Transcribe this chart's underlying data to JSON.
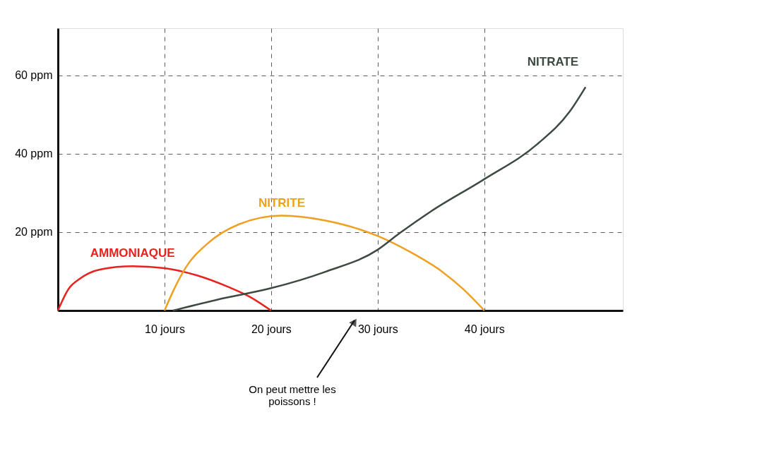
{
  "chart_data": {
    "type": "line",
    "xlim": [
      0,
      53
    ],
    "ylim": [
      0,
      72
    ],
    "xticks": [
      {
        "value": 10,
        "label": "10 jours"
      },
      {
        "value": 20,
        "label": "20 jours"
      },
      {
        "value": 30,
        "label": "30 jours"
      },
      {
        "value": 40,
        "label": "40 jours"
      }
    ],
    "yticks": [
      {
        "value": 20,
        "label": "20 ppm"
      },
      {
        "value": 40,
        "label": "40 ppm"
      },
      {
        "value": 60,
        "label": "60 ppm"
      }
    ],
    "grid": true,
    "line_style": "solid",
    "marker": "none",
    "series": [
      {
        "name": "AMMONIAQUE",
        "color": "#e8231e",
        "x": [
          0,
          1,
          2,
          4,
          7,
          10,
          13,
          16,
          18,
          20
        ],
        "values": [
          0,
          5.5,
          8,
          10.5,
          11.3,
          10.8,
          9,
          6,
          3.5,
          0
        ]
      },
      {
        "name": "NITRITE",
        "color": "#f0a020",
        "x": [
          10,
          11,
          12,
          14,
          17,
          21,
          25,
          30,
          33,
          36,
          38,
          40
        ],
        "values": [
          0,
          6,
          11,
          17,
          22,
          24.2,
          23,
          19,
          15,
          10,
          5.5,
          0
        ]
      },
      {
        "name": "NITRATE",
        "color": "#3d4a42",
        "x": [
          10.8,
          15,
          20,
          25,
          30,
          32,
          35,
          40,
          45,
          48,
          49.5
        ],
        "values": [
          0,
          2.8,
          5.7,
          9.8,
          15.5,
          19.6,
          25.3,
          33.5,
          42.5,
          50.7,
          57
        ]
      }
    ],
    "annotations": [
      "On peut mettre les poissons !"
    ]
  }
}
